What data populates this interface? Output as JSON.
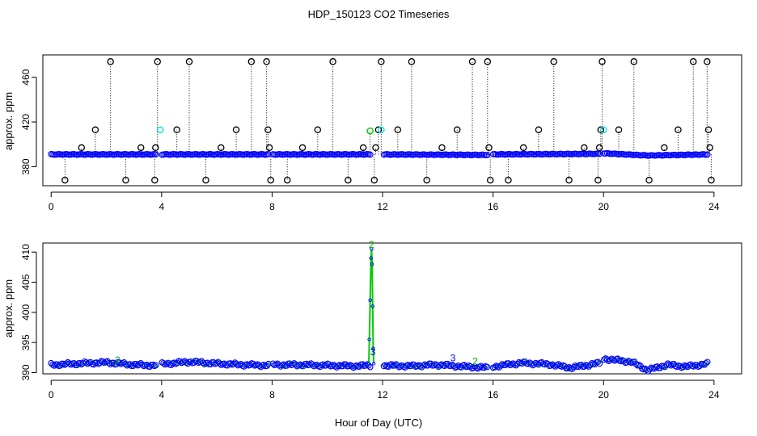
{
  "title": "HDP_150123  CO2 Timeseries",
  "xlabel": "Hour of Day (UTC)",
  "colors": {
    "points": "#0000ff",
    "outliers": "#000000",
    "flag_cyan": "#00e5e5",
    "flag_green": "#00cc00"
  },
  "chart_data": [
    {
      "type": "scatter",
      "title": "",
      "xlabel": "",
      "ylabel": "approx. ppm",
      "xlim": [
        -0.3,
        25
      ],
      "ylim": [
        363,
        480
      ],
      "x_ticks": [
        "0",
        "4",
        "8",
        "12",
        "16",
        "20",
        "24"
      ],
      "y_ticks": [
        "380",
        "420",
        "460"
      ],
      "baseline": [
        {
          "x": 0,
          "y": 391
        },
        {
          "x": 3.8,
          "y": 391
        },
        {
          "x": 4,
          "y": 391
        },
        {
          "x": 7.9,
          "y": 391
        },
        {
          "x": 8,
          "y": 391
        },
        {
          "x": 11.6,
          "y": 391
        },
        {
          "x": 12,
          "y": 391
        },
        {
          "x": 15.8,
          "y": 390.5
        },
        {
          "x": 16,
          "y": 391
        },
        {
          "x": 19.9,
          "y": 391.5
        },
        {
          "x": 20,
          "y": 392
        },
        {
          "x": 21.6,
          "y": 390
        },
        {
          "x": 23.8,
          "y": 391
        }
      ],
      "outliers": [
        {
          "x": 0.5,
          "y": 368
        },
        {
          "x": 1.1,
          "y": 397
        },
        {
          "x": 1.6,
          "y": 413
        },
        {
          "x": 2.15,
          "y": 474
        },
        {
          "x": 2.7,
          "y": 368
        },
        {
          "x": 3.25,
          "y": 397
        },
        {
          "x": 3.75,
          "y": 368
        },
        {
          "x": 3.78,
          "y": 397
        },
        {
          "x": 3.85,
          "y": 474
        },
        {
          "x": 4.55,
          "y": 413
        },
        {
          "x": 5.0,
          "y": 474
        },
        {
          "x": 5.6,
          "y": 368
        },
        {
          "x": 6.15,
          "y": 397
        },
        {
          "x": 6.7,
          "y": 413
        },
        {
          "x": 7.25,
          "y": 474
        },
        {
          "x": 7.8,
          "y": 474
        },
        {
          "x": 7.85,
          "y": 413
        },
        {
          "x": 7.9,
          "y": 397
        },
        {
          "x": 7.95,
          "y": 368
        },
        {
          "x": 8.55,
          "y": 368
        },
        {
          "x": 9.1,
          "y": 397
        },
        {
          "x": 9.65,
          "y": 413
        },
        {
          "x": 10.2,
          "y": 474
        },
        {
          "x": 10.75,
          "y": 368
        },
        {
          "x": 11.3,
          "y": 397
        },
        {
          "x": 11.7,
          "y": 368
        },
        {
          "x": 11.75,
          "y": 397
        },
        {
          "x": 11.85,
          "y": 413
        },
        {
          "x": 11.95,
          "y": 474
        },
        {
          "x": 12.55,
          "y": 413
        },
        {
          "x": 13.05,
          "y": 474
        },
        {
          "x": 13.6,
          "y": 368
        },
        {
          "x": 14.15,
          "y": 397
        },
        {
          "x": 14.7,
          "y": 413
        },
        {
          "x": 15.25,
          "y": 474
        },
        {
          "x": 15.8,
          "y": 474
        },
        {
          "x": 15.85,
          "y": 397
        },
        {
          "x": 15.9,
          "y": 368
        },
        {
          "x": 16.55,
          "y": 368
        },
        {
          "x": 17.1,
          "y": 397
        },
        {
          "x": 17.65,
          "y": 413
        },
        {
          "x": 18.2,
          "y": 474
        },
        {
          "x": 18.75,
          "y": 368
        },
        {
          "x": 19.3,
          "y": 397
        },
        {
          "x": 19.8,
          "y": 368
        },
        {
          "x": 19.85,
          "y": 397
        },
        {
          "x": 19.9,
          "y": 413
        },
        {
          "x": 19.95,
          "y": 474
        },
        {
          "x": 20.55,
          "y": 413
        },
        {
          "x": 21.1,
          "y": 474
        },
        {
          "x": 21.65,
          "y": 368
        },
        {
          "x": 22.2,
          "y": 397
        },
        {
          "x": 22.7,
          "y": 413
        },
        {
          "x": 23.25,
          "y": 474
        },
        {
          "x": 23.75,
          "y": 474
        },
        {
          "x": 23.8,
          "y": 413
        },
        {
          "x": 23.85,
          "y": 397
        },
        {
          "x": 23.9,
          "y": 368
        }
      ],
      "flag_cyan": [
        {
          "x": 3.95,
          "y": 413
        },
        {
          "x": 11.95,
          "y": 413
        },
        {
          "x": 20.0,
          "y": 413
        }
      ],
      "flag_green": [
        {
          "x": 11.55,
          "y": 412
        }
      ],
      "gaps": [
        [
          3.8,
          4.0
        ],
        [
          7.9,
          8.0
        ],
        [
          11.6,
          12.0
        ],
        [
          15.8,
          16.0
        ],
        [
          19.9,
          20.0
        ],
        [
          23.8,
          24.0
        ]
      ]
    },
    {
      "type": "scatter",
      "title": "",
      "xlabel": "Hour of Day (UTC)",
      "ylabel": "approx. ppm",
      "xlim": [
        -0.3,
        25
      ],
      "ylim": [
        389.8,
        411.5
      ],
      "x_ticks": [
        "0",
        "4",
        "8",
        "12",
        "16",
        "20",
        "24"
      ],
      "y_ticks": [
        "390",
        "395",
        "400",
        "405",
        "410"
      ],
      "baseline": [
        {
          "x": 0,
          "y": 391.3
        },
        {
          "x": 1,
          "y": 391.5
        },
        {
          "x": 2,
          "y": 391.7
        },
        {
          "x": 3,
          "y": 391.3
        },
        {
          "x": 3.8,
          "y": 391.2
        },
        {
          "x": 4,
          "y": 391.4
        },
        {
          "x": 5,
          "y": 391.8
        },
        {
          "x": 6,
          "y": 391.5
        },
        {
          "x": 7,
          "y": 391.3
        },
        {
          "x": 7.9,
          "y": 391.2
        },
        {
          "x": 8,
          "y": 391.3
        },
        {
          "x": 9,
          "y": 391.3
        },
        {
          "x": 10,
          "y": 391.2
        },
        {
          "x": 11,
          "y": 391.1
        },
        {
          "x": 11.6,
          "y": 391.2
        },
        {
          "x": 12,
          "y": 391.2
        },
        {
          "x": 13,
          "y": 391.1
        },
        {
          "x": 14,
          "y": 391.3
        },
        {
          "x": 15,
          "y": 391.0
        },
        {
          "x": 15.8,
          "y": 390.8
        },
        {
          "x": 16,
          "y": 391.0
        },
        {
          "x": 17,
          "y": 391.6
        },
        {
          "x": 18,
          "y": 391.4
        },
        {
          "x": 18.8,
          "y": 390.8
        },
        {
          "x": 19.9,
          "y": 391.6
        },
        {
          "x": 20,
          "y": 392.3
        },
        {
          "x": 21,
          "y": 391.8
        },
        {
          "x": 21.6,
          "y": 390.4
        },
        {
          "x": 22.3,
          "y": 391.3
        },
        {
          "x": 23,
          "y": 391.0
        },
        {
          "x": 23.8,
          "y": 391.5
        }
      ],
      "spike": [
        {
          "x": 11.5,
          "y": 391.5
        },
        {
          "x": 11.52,
          "y": 395.5
        },
        {
          "x": 11.55,
          "y": 402
        },
        {
          "x": 11.58,
          "y": 409
        },
        {
          "x": 11.6,
          "y": 410.5
        },
        {
          "x": 11.62,
          "y": 408
        },
        {
          "x": 11.64,
          "y": 401
        },
        {
          "x": 11.66,
          "y": 394
        },
        {
          "x": 11.68,
          "y": 391.5
        }
      ],
      "markers": [
        {
          "x": 11.6,
          "y": 411.2,
          "label": "2",
          "color": "#00aa00"
        },
        {
          "x": 11.65,
          "y": 393.4,
          "label": "3",
          "color": "#0000ff"
        },
        {
          "x": 14.55,
          "y": 392.4,
          "label": "3",
          "color": "#0000ff"
        },
        {
          "x": 15.35,
          "y": 391.9,
          "label": "2",
          "color": "#00aa00"
        },
        {
          "x": 2.4,
          "y": 392.1,
          "label": "2",
          "color": "#00aa00"
        }
      ],
      "gaps": [
        [
          3.8,
          4.0
        ],
        [
          7.9,
          8.0
        ],
        [
          11.6,
          12.0
        ],
        [
          15.8,
          16.0
        ],
        [
          19.9,
          20.0
        ],
        [
          23.8,
          24.0
        ]
      ]
    }
  ]
}
